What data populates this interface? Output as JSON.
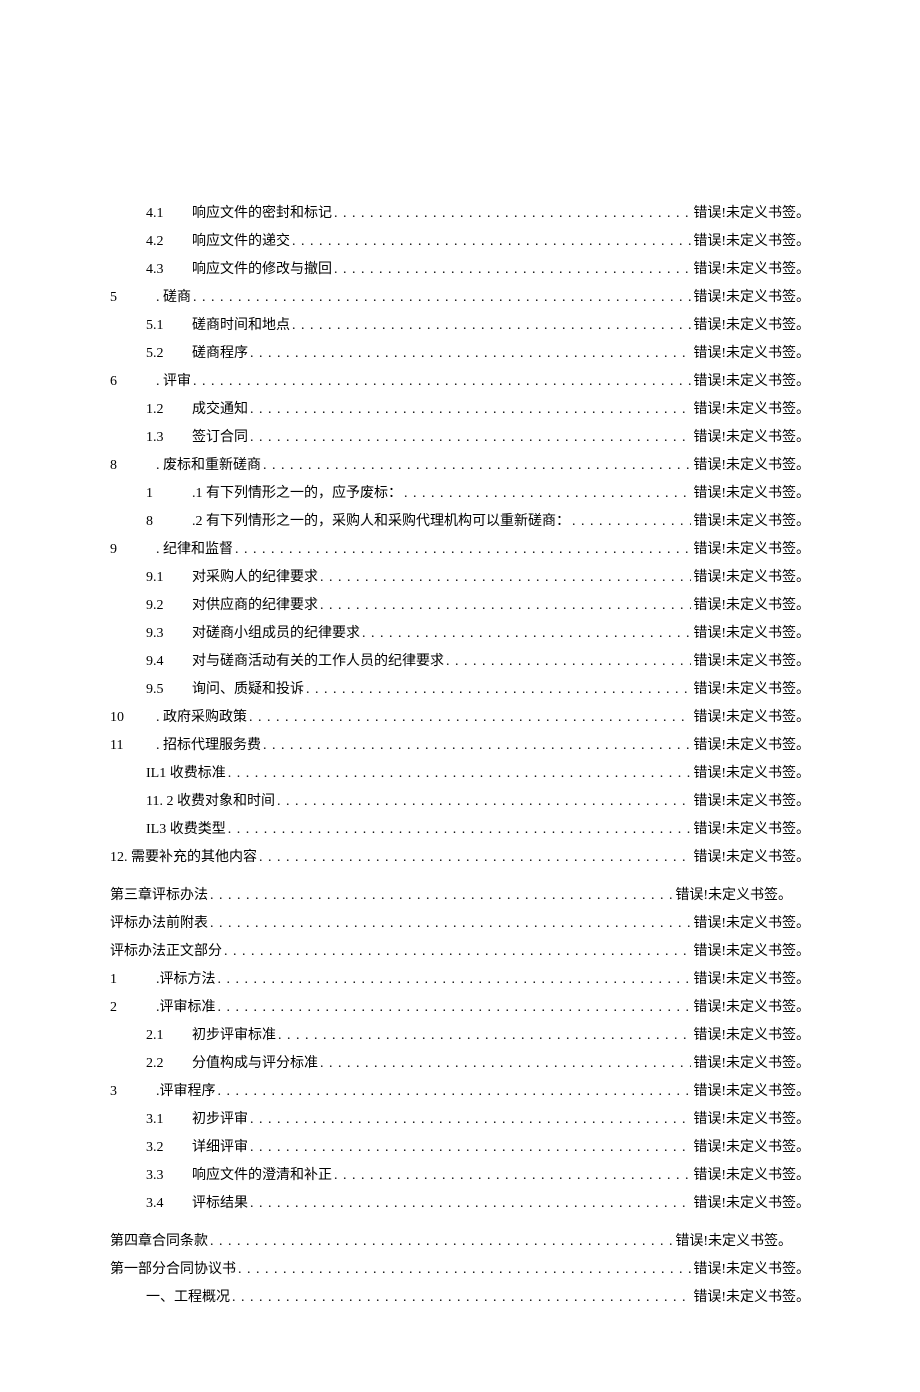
{
  "err": "错误!未定义书签。",
  "entries": [
    {
      "indent": "indent-1",
      "num": "4.1",
      "title": "响应文件的密封和标记"
    },
    {
      "indent": "indent-1",
      "num": "4.2",
      "title": "响应文件的递交"
    },
    {
      "indent": "indent-1",
      "num": "4.3",
      "title": "响应文件的修改与撤回"
    },
    {
      "indent": "indent-0",
      "num": "5",
      "title": ". 磋商"
    },
    {
      "indent": "indent-1",
      "num": "5.1",
      "title": "磋商时间和地点"
    },
    {
      "indent": "indent-1",
      "num": "5.2",
      "title": "磋商程序"
    },
    {
      "indent": "indent-0",
      "num": "6",
      "title": ". 评审"
    },
    {
      "indent": "indent-1",
      "num": "1.2",
      "title": "成交通知"
    },
    {
      "indent": "indent-1",
      "num": "1.3",
      "title": "签订合同"
    },
    {
      "indent": "indent-0",
      "num": "8",
      "title": ". 废标和重新磋商"
    },
    {
      "indent": "indent-1",
      "num": "1",
      "title": ".1 有下列情形之一的，应予废标："
    },
    {
      "indent": "indent-1",
      "num": "8",
      "title": ".2 有下列情形之一的，采购人和采购代理机构可以重新磋商："
    },
    {
      "indent": "indent-0",
      "num": "9",
      "title": ". 纪律和监督"
    },
    {
      "indent": "indent-1",
      "num": "9.1",
      "title": "对采购人的纪律要求"
    },
    {
      "indent": "indent-1",
      "num": "9.2",
      "title": "对供应商的纪律要求"
    },
    {
      "indent": "indent-1",
      "num": "9.3",
      "title": "对磋商小组成员的纪律要求"
    },
    {
      "indent": "indent-1",
      "num": "9.4",
      "title": "对与磋商活动有关的工作人员的纪律要求"
    },
    {
      "indent": "indent-1",
      "num": "9.5",
      "title": "询问、质疑和投诉"
    },
    {
      "indent": "indent-0",
      "num": "10",
      "title": ". 政府采购政策"
    },
    {
      "indent": "indent-0",
      "num": "11",
      "title": ". 招标代理服务费"
    },
    {
      "indent": "indent-1b",
      "num": "",
      "title": "IL1 收费标准"
    },
    {
      "indent": "indent-1b",
      "num": "",
      "title": "11. 2 收费对象和时间"
    },
    {
      "indent": "indent-1b",
      "num": "",
      "title": "IL3 收费类型"
    },
    {
      "indent": "indent-0",
      "num": "",
      "title": "12. 需要补充的其他内容"
    },
    {
      "indent": "indent-0",
      "num": "",
      "title": "第三章评标办法",
      "gap": true,
      "short": true
    },
    {
      "indent": "indent-0",
      "num": "",
      "title": "评标办法前附表"
    },
    {
      "indent": "indent-0",
      "num": "",
      "title": "评标办法正文部分"
    },
    {
      "indent": "indent-0",
      "num": "1",
      "title": ".评标方法"
    },
    {
      "indent": "indent-0",
      "num": "2",
      "title": ".评审标准"
    },
    {
      "indent": "indent-1",
      "num": "2.1",
      "title": "初步评审标准"
    },
    {
      "indent": "indent-1",
      "num": "2.2",
      "title": "分值构成与评分标准"
    },
    {
      "indent": "indent-0",
      "num": "3",
      "title": ".评审程序"
    },
    {
      "indent": "indent-1",
      "num": "3.1",
      "title": "初步评审"
    },
    {
      "indent": "indent-1",
      "num": "3.2",
      "title": "详细评审"
    },
    {
      "indent": "indent-1",
      "num": "3.3",
      "title": "响应文件的澄清和补正"
    },
    {
      "indent": "indent-1",
      "num": "3.4",
      "title": "评标结果"
    },
    {
      "indent": "indent-0",
      "num": "",
      "title": "第四章合同条款",
      "gap": true,
      "short": true
    },
    {
      "indent": "indent-0",
      "num": "",
      "title": "第一部分合同协议书"
    },
    {
      "indent": "indent-1b",
      "num": "",
      "title": "一、工程概况"
    }
  ]
}
